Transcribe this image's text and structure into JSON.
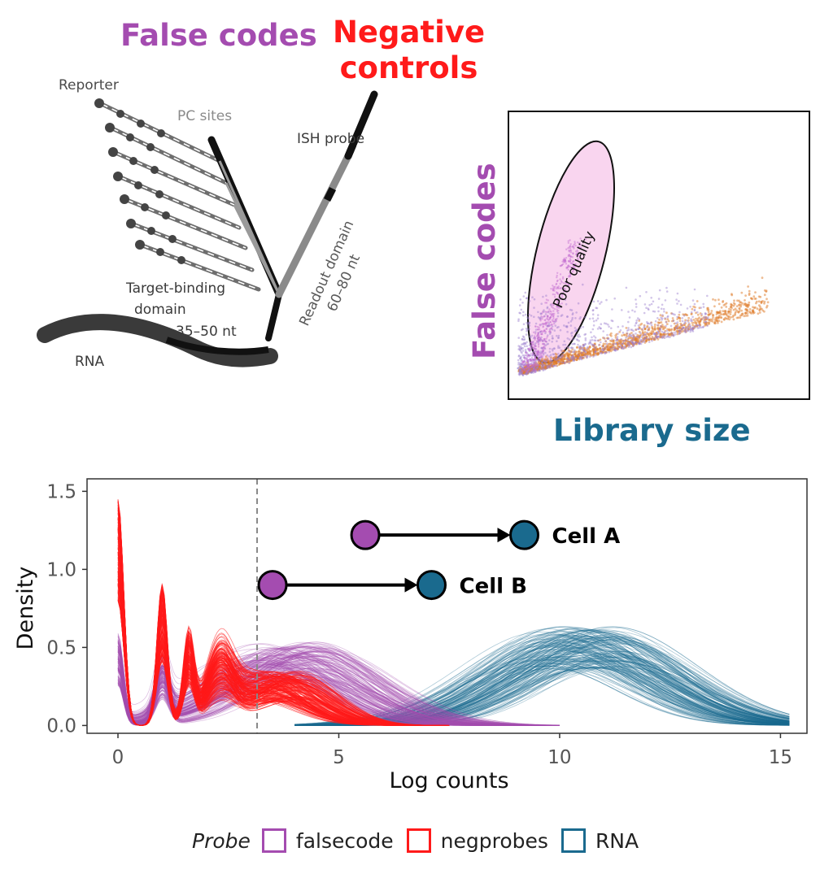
{
  "header": {
    "false_codes": "False codes",
    "negative_controls_1": "Negative",
    "negative_controls_2": "controls"
  },
  "probe_diagram": {
    "reporter": "Reporter",
    "pc_sites": "PC sites",
    "ish_probe": "ISH probe",
    "target_binding_1": "Target-binding",
    "target_binding_2": "domain",
    "target_binding_3": "35–50 nt",
    "readout_1": "Readout domain",
    "readout_2": "60–80 nt",
    "rna": "RNA"
  },
  "scatter": {
    "ylabel": "False codes",
    "xlabel": "Library size",
    "ellipse_label": "Poor quality",
    "colors": {
      "ellipse": "#f9d5ef",
      "orange": "#e07b2a",
      "purple": "#9b7fcf"
    }
  },
  "colors": {
    "falsecode": "#a44cb0",
    "negprobes": "#ff1a1a",
    "rna": "#1a6a8e",
    "header_false": "#a44cb0",
    "header_neg": "#ff1a1a",
    "library": "#1a6a8e"
  },
  "chart_data": {
    "type": "line",
    "title": "",
    "xlabel": "Log counts",
    "ylabel": "Density",
    "xlim": [
      -0.7,
      15.6
    ],
    "ylim": [
      -0.05,
      1.58
    ],
    "x_ticks": [
      0,
      5,
      10,
      15
    ],
    "y_ticks": [
      0.0,
      0.5,
      1.0,
      1.5
    ],
    "x_tick_labels": [
      "0",
      "5",
      "10",
      "15"
    ],
    "y_tick_labels": [
      "0.0",
      "0.5",
      "1.0",
      "1.5"
    ],
    "threshold_x": 3.15,
    "series": [
      {
        "name": "negprobes",
        "description": "many overlapping density curves",
        "peaks": [
          {
            "x": 0,
            "y": 1.45
          },
          {
            "x": 1.0,
            "y": 0.9
          },
          {
            "x": 1.6,
            "y": 0.55
          },
          {
            "x": 2.3,
            "y": 0.4
          }
        ],
        "range": [
          0,
          7.5
        ]
      },
      {
        "name": "falsecode",
        "description": "many overlapping density curves",
        "peak_x": 3.9,
        "peak_y": 0.45,
        "range": [
          0,
          10
        ]
      },
      {
        "name": "RNA",
        "description": "many overlapping density curves",
        "peak_x": 10.5,
        "peak_y": 0.5,
        "range": [
          4,
          15.2
        ]
      }
    ],
    "annotations": [
      {
        "label": "Cell A",
        "from_x": 5.6,
        "to_x": 9.2,
        "y": 1.22
      },
      {
        "label": "Cell B",
        "from_x": 3.5,
        "to_x": 7.1,
        "y": 0.9
      }
    ],
    "legend": {
      "title": "Probe",
      "position": "bottom",
      "entries": [
        "falsecode",
        "negprobes",
        "RNA"
      ]
    }
  }
}
